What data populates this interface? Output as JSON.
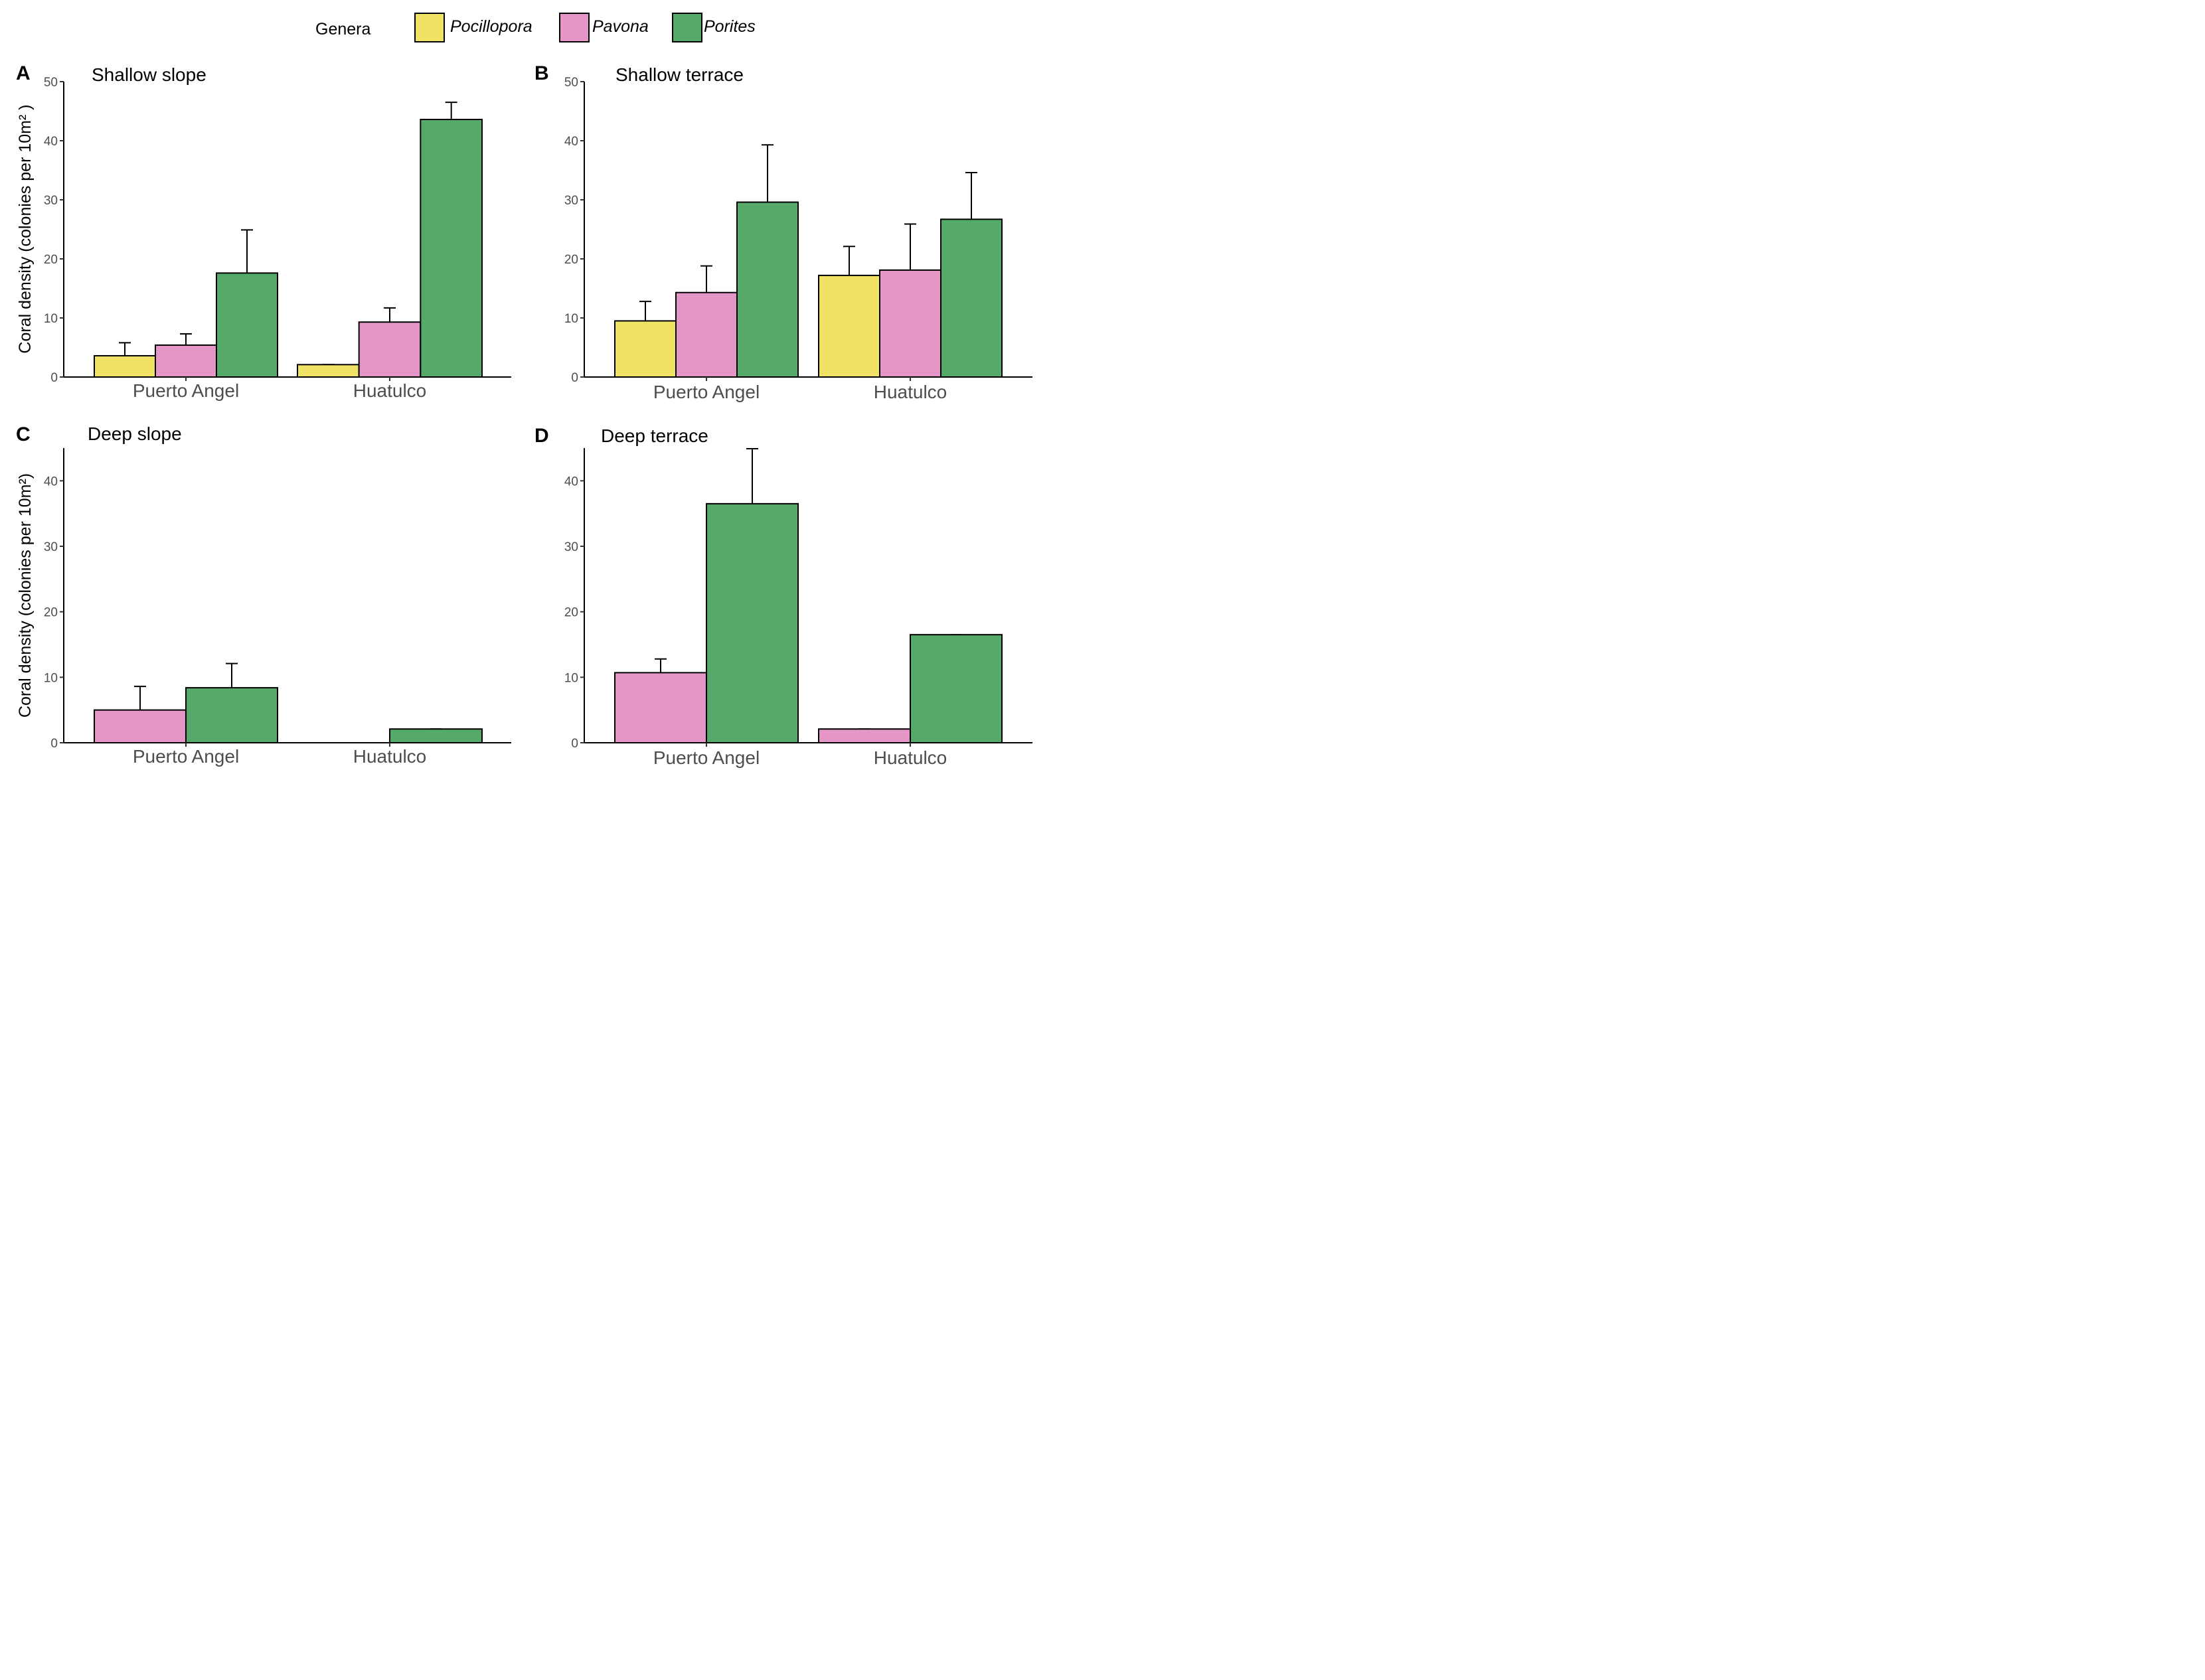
{
  "legend": {
    "title": "Genera",
    "items": [
      {
        "label": "Pocillopora",
        "color": "#f0e264"
      },
      {
        "label": "Pavona",
        "color": "#e496c7"
      },
      {
        "label": "Porites",
        "color": "#55aa69"
      }
    ]
  },
  "chart_data": [
    {
      "type": "bar",
      "tag": "A",
      "title": "Shallow slope",
      "ylabel": "Coral density (colonies per 10m² )",
      "ylim": [
        0,
        50
      ],
      "yticks": [
        0,
        10,
        20,
        30,
        40,
        50
      ],
      "categories": [
        "Puerto Angel",
        "Huatulco"
      ],
      "series": [
        {
          "name": "Pocillopora",
          "values": [
            3.6,
            2.1
          ],
          "errors": [
            2.2,
            0
          ]
        },
        {
          "name": "Pavona",
          "values": [
            5.4,
            9.3
          ],
          "errors": [
            1.9,
            2.4
          ]
        },
        {
          "name": "Porites",
          "values": [
            17.6,
            43.6
          ],
          "errors": [
            7.3,
            2.9
          ]
        }
      ]
    },
    {
      "type": "bar",
      "tag": "B",
      "title": "Shallow terrace",
      "ylabel": "",
      "ylim": [
        0,
        50
      ],
      "yticks": [
        0,
        10,
        20,
        30,
        40,
        50
      ],
      "categories": [
        "Puerto Angel",
        "Huatulco"
      ],
      "series": [
        {
          "name": "Pocillopora",
          "values": [
            9.5,
            17.2
          ],
          "errors": [
            3.3,
            4.9
          ]
        },
        {
          "name": "Pavona",
          "values": [
            14.3,
            18.1
          ],
          "errors": [
            4.5,
            7.8
          ]
        },
        {
          "name": "Porites",
          "values": [
            29.6,
            26.7
          ],
          "errors": [
            9.7,
            7.9
          ]
        }
      ]
    },
    {
      "type": "bar",
      "tag": "C",
      "title": "Deep slope",
      "ylabel": "Coral density (colonies per 10m²)",
      "ylim": [
        0,
        45
      ],
      "yticks": [
        0,
        10,
        20,
        30,
        40
      ],
      "categories": [
        "Puerto Angel",
        "Huatulco"
      ],
      "series": [
        {
          "name": "Pavona",
          "values": [
            5.0,
            null
          ],
          "errors": [
            3.6,
            null
          ]
        },
        {
          "name": "Porites",
          "values": [
            8.4,
            2.1
          ],
          "errors": [
            3.7,
            0
          ]
        }
      ]
    },
    {
      "type": "bar",
      "tag": "D",
      "title": "Deep terrace",
      "ylabel": "",
      "ylim": [
        0,
        45
      ],
      "yticks": [
        0,
        10,
        20,
        30,
        40
      ],
      "categories": [
        "Puerto Angel",
        "Huatulco"
      ],
      "series": [
        {
          "name": "Pavona",
          "values": [
            10.7,
            2.1
          ],
          "errors": [
            2.1,
            0
          ]
        },
        {
          "name": "Porites",
          "values": [
            36.5,
            16.5
          ],
          "errors": [
            8.4,
            0
          ]
        }
      ]
    }
  ]
}
